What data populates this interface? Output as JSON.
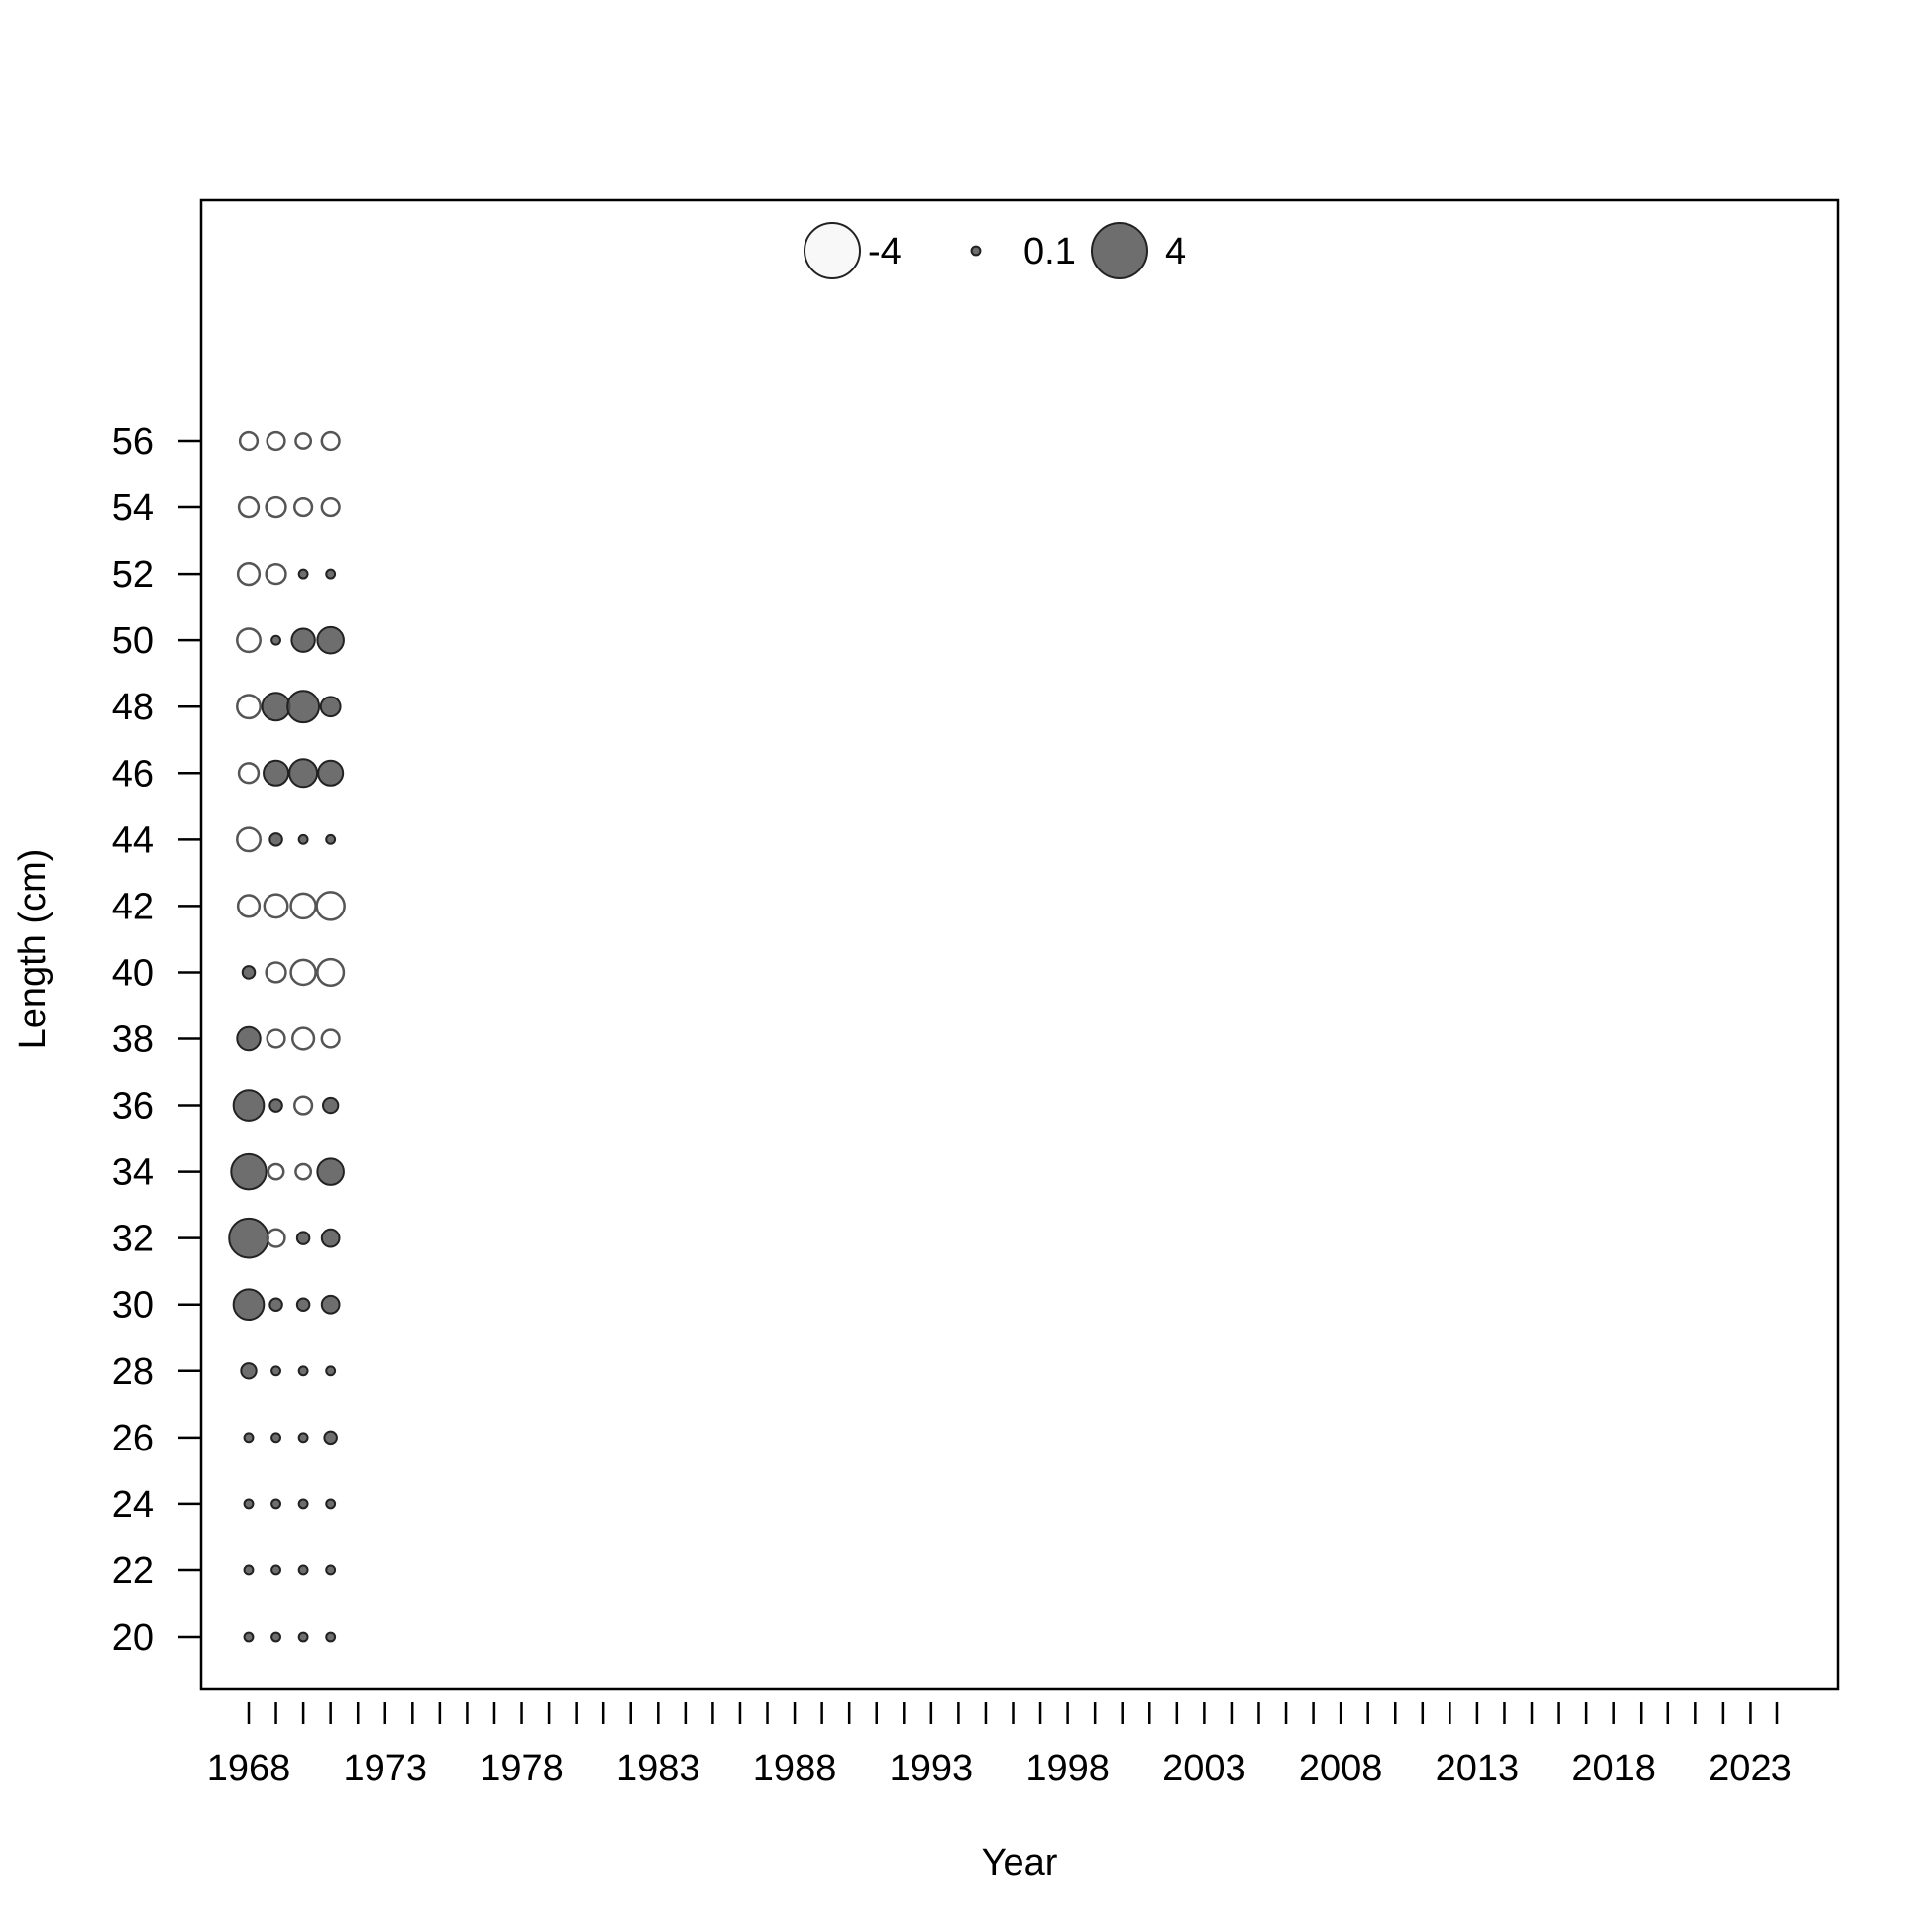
{
  "chart_data": {
    "type": "bubble",
    "title": "",
    "xlabel": "Year",
    "ylabel": "Length (cm)",
    "x_tick_labels": [
      "1968",
      "1973",
      "1978",
      "1983",
      "1988",
      "1993",
      "1998",
      "2003",
      "2008",
      "2013",
      "2018",
      "2023"
    ],
    "y_tick_labels": [
      "20",
      "22",
      "24",
      "26",
      "28",
      "30",
      "32",
      "34",
      "36",
      "38",
      "40",
      "42",
      "44",
      "46",
      "48",
      "50",
      "52",
      "54",
      "56"
    ],
    "xlim": [
      1968,
      2024
    ],
    "ylim": [
      20,
      56
    ],
    "legend": {
      "placement": "top-center",
      "entries": [
        {
          "label": "-4",
          "value": -4
        },
        {
          "label": "0.1",
          "value": 0.1
        },
        {
          "label": "4",
          "value": 4
        }
      ]
    },
    "colors": {
      "positive_fill": "#555555",
      "negative_outline": "#555555",
      "blue": "#2020ee",
      "red": "#ff2020",
      "axis": "#000000"
    },
    "series": [
      {
        "name": "",
        "color": "#555555",
        "years": [
          1968,
          1969,
          1970,
          1971
        ],
        "values_by_length": {
          "20": [
            0.1,
            0.1,
            0.1,
            0.1
          ],
          "22": [
            0.1,
            0.1,
            0.1,
            0.1
          ],
          "24": [
            0.1,
            0.1,
            0.1,
            0.1
          ],
          "26": [
            0.1,
            0.1,
            0.1,
            0.2
          ],
          "28": [
            0.3,
            0.1,
            0.1,
            0.1
          ],
          "30": [
            1.2,
            0.2,
            0.2,
            0.4
          ],
          "32": [
            2.0,
            -0.4,
            0.2,
            0.4
          ],
          "34": [
            1.6,
            -0.3,
            -0.3,
            0.9
          ],
          "36": [
            1.2,
            0.2,
            -0.4,
            0.3
          ],
          "38": [
            0.7,
            -0.4,
            -0.6,
            -0.4
          ],
          "40": [
            0.2,
            -0.5,
            -0.8,
            -0.9
          ],
          "42": [
            -0.6,
            -0.7,
            -0.8,
            -1.0
          ],
          "44": [
            -0.7,
            0.2,
            0.1,
            0.1
          ],
          "46": [
            -0.5,
            0.8,
            1.0,
            0.8
          ],
          "48": [
            -0.7,
            1.0,
            1.3,
            0.5
          ],
          "50": [
            -0.7,
            0.1,
            0.7,
            0.9
          ],
          "52": [
            -0.6,
            -0.5,
            0.1,
            0.1
          ],
          "54": [
            -0.5,
            -0.5,
            -0.4,
            -0.4
          ],
          "56": [
            -0.4,
            -0.4,
            -0.3,
            -0.4
          ]
        }
      }
    ]
  }
}
